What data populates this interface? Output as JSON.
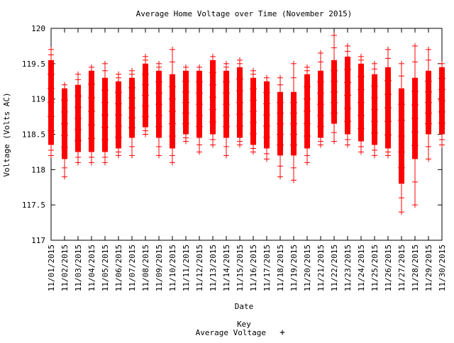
{
  "chart_data": {
    "type": "scatter",
    "title": "Average Home Voltage over Time (November 2015)",
    "xlabel": "Date",
    "ylabel": "Voltage (Volts AC)",
    "ylim": [
      117,
      120
    ],
    "yticks": [
      "117",
      "117.5",
      "118",
      "118.5",
      "119",
      "119.5",
      "120"
    ],
    "categories": [
      "11/01/2015",
      "11/02/2015",
      "11/03/2015",
      "11/04/2015",
      "11/05/2015",
      "11/06/2015",
      "11/07/2015",
      "11/08/2015",
      "11/09/2015",
      "11/10/2015",
      "11/11/2015",
      "11/12/2015",
      "11/13/2015",
      "11/14/2015",
      "11/15/2015",
      "11/16/2015",
      "11/17/2015",
      "11/18/2015",
      "11/19/2015",
      "11/20/2015",
      "11/21/2015",
      "11/22/2015",
      "11/23/2015",
      "11/24/2015",
      "11/25/2015",
      "11/26/2015",
      "11/27/2015",
      "11/28/2015",
      "11/29/2015",
      "11/30/2015"
    ],
    "legend": {
      "title": "Key",
      "position": "bottom-center",
      "series_label": "Average Voltage"
    },
    "series": [
      {
        "name": "Average Voltage",
        "color": "#ff0000",
        "marker": "+",
        "daily_ranges": [
          {
            "date": "11/01/2015",
            "min": 118.2,
            "max": 119.7,
            "band_low": 118.35,
            "band_high": 119.55
          },
          {
            "date": "11/02/2015",
            "min": 117.9,
            "max": 119.2,
            "band_low": 118.15,
            "band_high": 119.15
          },
          {
            "date": "11/03/2015",
            "min": 118.1,
            "max": 119.35,
            "band_low": 118.25,
            "band_high": 119.2
          },
          {
            "date": "11/04/2015",
            "min": 118.1,
            "max": 119.45,
            "band_low": 118.25,
            "band_high": 119.4
          },
          {
            "date": "11/05/2015",
            "min": 118.1,
            "max": 119.5,
            "band_low": 118.25,
            "band_high": 119.3
          },
          {
            "date": "11/06/2015",
            "min": 118.2,
            "max": 119.35,
            "band_low": 118.3,
            "band_high": 119.25
          },
          {
            "date": "11/07/2015",
            "min": 118.2,
            "max": 119.4,
            "band_low": 118.45,
            "band_high": 119.3
          },
          {
            "date": "11/08/2015",
            "min": 118.5,
            "max": 119.6,
            "band_low": 118.6,
            "band_high": 119.5
          },
          {
            "date": "11/09/2015",
            "min": 118.2,
            "max": 119.5,
            "band_low": 118.45,
            "band_high": 119.4
          },
          {
            "date": "11/10/2015",
            "min": 118.1,
            "max": 119.7,
            "band_low": 118.3,
            "band_high": 119.35
          },
          {
            "date": "11/11/2015",
            "min": 118.4,
            "max": 119.45,
            "band_low": 118.5,
            "band_high": 119.4
          },
          {
            "date": "11/12/2015",
            "min": 118.25,
            "max": 119.45,
            "band_low": 118.45,
            "band_high": 119.4
          },
          {
            "date": "11/13/2015",
            "min": 118.35,
            "max": 119.6,
            "band_low": 118.5,
            "band_high": 119.55
          },
          {
            "date": "11/14/2015",
            "min": 118.2,
            "max": 119.5,
            "band_low": 118.45,
            "band_high": 119.4
          },
          {
            "date": "11/15/2015",
            "min": 118.35,
            "max": 119.55,
            "band_low": 118.45,
            "band_high": 119.45
          },
          {
            "date": "11/16/2015",
            "min": 118.25,
            "max": 119.4,
            "band_low": 118.35,
            "band_high": 119.3
          },
          {
            "date": "11/17/2015",
            "min": 118.15,
            "max": 119.3,
            "band_low": 118.3,
            "band_high": 119.25
          },
          {
            "date": "11/18/2015",
            "min": 117.9,
            "max": 119.3,
            "band_low": 118.2,
            "band_high": 119.1
          },
          {
            "date": "11/19/2015",
            "min": 117.85,
            "max": 119.5,
            "band_low": 118.2,
            "band_high": 119.1
          },
          {
            "date": "11/20/2015",
            "min": 118.1,
            "max": 119.45,
            "band_low": 118.3,
            "band_high": 119.35
          },
          {
            "date": "11/21/2015",
            "min": 118.35,
            "max": 119.65,
            "band_low": 118.45,
            "band_high": 119.4
          },
          {
            "date": "11/22/2015",
            "min": 118.4,
            "max": 119.9,
            "band_low": 118.65,
            "band_high": 119.55
          },
          {
            "date": "11/23/2015",
            "min": 118.35,
            "max": 119.75,
            "band_low": 118.5,
            "band_high": 119.6
          },
          {
            "date": "11/24/2015",
            "min": 118.25,
            "max": 119.6,
            "band_low": 118.4,
            "band_high": 119.5
          },
          {
            "date": "11/25/2015",
            "min": 118.2,
            "max": 119.5,
            "band_low": 118.35,
            "band_high": 119.35
          },
          {
            "date": "11/26/2015",
            "min": 118.2,
            "max": 119.7,
            "band_low": 118.3,
            "band_high": 119.45
          },
          {
            "date": "11/27/2015",
            "min": 117.4,
            "max": 119.5,
            "band_low": 117.8,
            "band_high": 119.15
          },
          {
            "date": "11/28/2015",
            "min": 117.5,
            "max": 119.75,
            "band_low": 118.15,
            "band_high": 119.3
          },
          {
            "date": "11/29/2015",
            "min": 118.15,
            "max": 119.7,
            "band_low": 118.5,
            "band_high": 119.4
          },
          {
            "date": "11/30/2015",
            "min": 118.35,
            "max": 119.5,
            "band_low": 118.5,
            "band_high": 119.45
          }
        ]
      }
    ],
    "legend_marker": "+"
  }
}
